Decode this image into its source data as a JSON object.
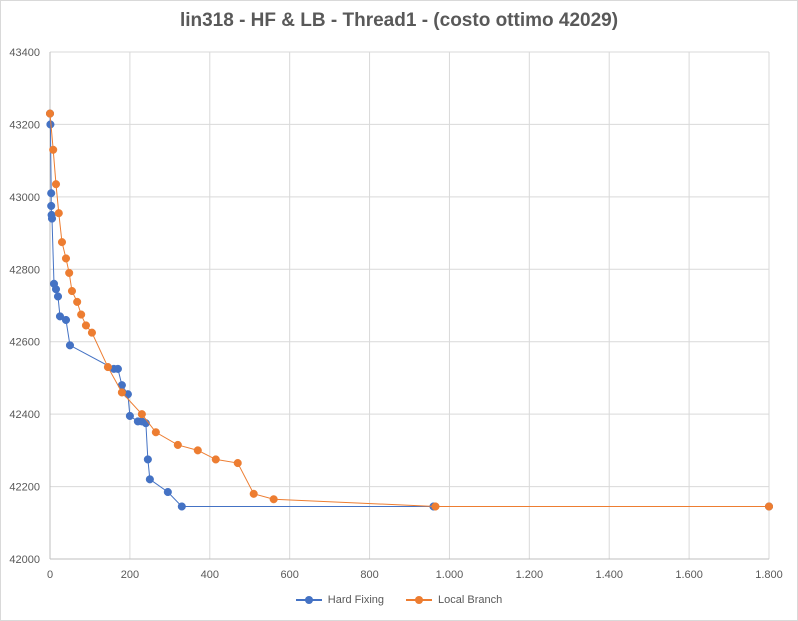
{
  "chart_data": {
    "type": "scatter",
    "title": "lin318 - HF & LB - Thread1 - (costo ottimo  42029)",
    "xlabel": "",
    "ylabel": "",
    "xlim": [
      0,
      1800
    ],
    "ylim": [
      42000,
      43400
    ],
    "x_ticks": [
      "0",
      "200",
      "400",
      "600",
      "800",
      "1.000",
      "1.200",
      "1.400",
      "1.600",
      "1.800"
    ],
    "y_ticks": [
      "42000",
      "42200",
      "42400",
      "42600",
      "42800",
      "43000",
      "43200",
      "43400"
    ],
    "grid": true,
    "legend_position": "bottom",
    "series": [
      {
        "name": "Hard Fixing",
        "color": "#4472c4",
        "points": [
          [
            0,
            43230
          ],
          [
            1,
            43200
          ],
          [
            3,
            43010
          ],
          [
            3,
            42975
          ],
          [
            4,
            42950
          ],
          [
            5,
            42940
          ],
          [
            10,
            42760
          ],
          [
            15,
            42745
          ],
          [
            20,
            42725
          ],
          [
            25,
            42670
          ],
          [
            40,
            42660
          ],
          [
            50,
            42590
          ],
          [
            160,
            42525
          ],
          [
            170,
            42525
          ],
          [
            180,
            42480
          ],
          [
            195,
            42455
          ],
          [
            200,
            42395
          ],
          [
            220,
            42380
          ],
          [
            230,
            42380
          ],
          [
            240,
            42375
          ],
          [
            245,
            42275
          ],
          [
            250,
            42220
          ],
          [
            295,
            42185
          ],
          [
            330,
            42145
          ],
          [
            960,
            42145
          ],
          [
            1800,
            42145
          ]
        ]
      },
      {
        "name": "Local Branch",
        "color": "#ed7d31",
        "points": [
          [
            0,
            43230
          ],
          [
            8,
            43130
          ],
          [
            15,
            43035
          ],
          [
            22,
            42955
          ],
          [
            30,
            42875
          ],
          [
            40,
            42830
          ],
          [
            48,
            42790
          ],
          [
            55,
            42740
          ],
          [
            68,
            42710
          ],
          [
            78,
            42675
          ],
          [
            90,
            42645
          ],
          [
            105,
            42625
          ],
          [
            145,
            42530
          ],
          [
            180,
            42460
          ],
          [
            230,
            42400
          ],
          [
            265,
            42350
          ],
          [
            320,
            42315
          ],
          [
            370,
            42300
          ],
          [
            415,
            42275
          ],
          [
            470,
            42265
          ],
          [
            510,
            42180
          ],
          [
            560,
            42165
          ],
          [
            965,
            42145
          ],
          [
            1800,
            42145
          ]
        ]
      }
    ]
  }
}
